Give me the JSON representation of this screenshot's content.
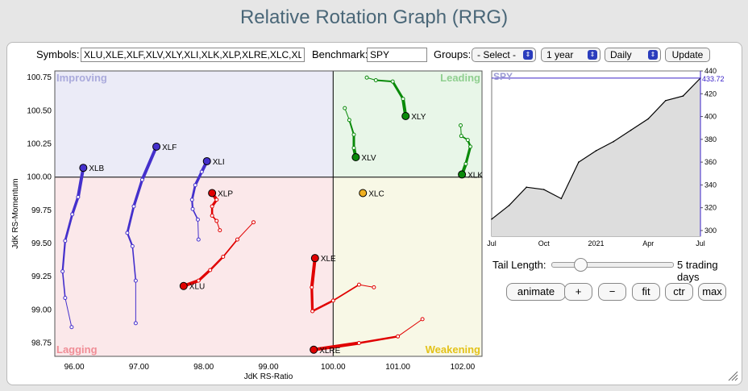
{
  "page_title": "Relative Rotation Graph (RRG)",
  "controls": {
    "symbols_label": "Symbols:",
    "symbols_value": "XLU,XLE,XLF,XLV,XLY,XLI,XLK,XLP,XLRE,XLC,XLB",
    "benchmark_label": "Benchmark:",
    "benchmark_value": "SPY",
    "groups_label": "Groups:",
    "groups_selected": "- Select -",
    "period_selected": "1 year",
    "interval_selected": "Daily",
    "update_label": "Update"
  },
  "tail": {
    "label": "Tail Length:",
    "value": 5,
    "value_text": "5 trading days"
  },
  "buttons": {
    "animate": "animate",
    "plus": "+",
    "minus": "−",
    "fit": "fit",
    "ctr": "ctr",
    "max": "max"
  },
  "chart_data": [
    {
      "type": "scatter",
      "title": "",
      "xlabel": "JdK RS-Ratio",
      "ylabel": "JdK RS-Momentum",
      "xlim": [
        95.7,
        102.3
      ],
      "ylim": [
        98.65,
        100.8
      ],
      "xticks": [
        96.0,
        97.0,
        98.0,
        99.0,
        100.0,
        101.0,
        102.0
      ],
      "yticks": [
        98.75,
        99.0,
        99.25,
        99.5,
        99.75,
        100.0,
        100.25,
        100.5,
        100.75
      ],
      "quadrants": {
        "improving": {
          "label": "Improving",
          "color": "#ebebf7",
          "text_color": "#aaaadc"
        },
        "leading": {
          "label": "Leading",
          "color": "#e8f6e8",
          "text_color": "#8fcf8f"
        },
        "weakening": {
          "label": "Weakening",
          "color": "#f8f8e6",
          "text_color": "#e3c21a"
        },
        "lagging": {
          "label": "Lagging",
          "color": "#fbe8ea",
          "text_color": "#f08d96"
        }
      },
      "series": [
        {
          "name": "XLB",
          "color": "#4430cc",
          "x": [
            95.96,
            95.86,
            95.82,
            95.86,
            95.97,
            96.06,
            96.14
          ],
          "y": [
            98.87,
            99.09,
            99.29,
            99.52,
            99.72,
            99.85,
            100.07
          ]
        },
        {
          "name": "XLF",
          "color": "#4430cc",
          "x": [
            96.95,
            96.95,
            96.9,
            96.82,
            96.92,
            97.05,
            97.27
          ],
          "y": [
            98.9,
            99.22,
            99.48,
            99.58,
            99.78,
            99.98,
            100.23
          ]
        },
        {
          "name": "XLI",
          "color": "#4430cc",
          "x": [
            97.92,
            97.91,
            97.83,
            97.82,
            97.87,
            97.97,
            98.05
          ],
          "y": [
            99.53,
            99.68,
            99.76,
            99.83,
            99.94,
            100.04,
            100.12
          ]
        },
        {
          "name": "XLP",
          "color": "#e00000",
          "x": [
            98.25,
            98.2,
            98.13,
            98.13,
            98.2,
            98.13
          ],
          "y": [
            99.6,
            99.67,
            99.71,
            99.78,
            99.83,
            99.88
          ]
        },
        {
          "name": "XLU",
          "color": "#e00000",
          "x": [
            98.77,
            98.52,
            98.3,
            98.1,
            97.92,
            97.69
          ],
          "y": [
            99.66,
            99.53,
            99.4,
            99.3,
            99.22,
            99.18
          ]
        },
        {
          "name": "XLE",
          "color": "#e00000",
          "x": [
            100.63,
            100.4,
            100.0,
            99.68,
            99.67,
            99.72
          ],
          "y": [
            99.17,
            99.19,
            99.07,
            98.99,
            99.17,
            99.39
          ]
        },
        {
          "name": "XLRE",
          "color": "#e00000",
          "x": [
            101.38,
            101.0,
            100.4,
            99.7
          ],
          "y": [
            98.93,
            98.8,
            98.75,
            98.7
          ]
        },
        {
          "name": "XLC",
          "color": "#f0b020",
          "x": [
            100.46
          ],
          "y": [
            99.88
          ]
        },
        {
          "name": "XLV",
          "color": "#0a8a0a",
          "x": [
            100.18,
            100.25,
            100.32,
            100.32,
            100.35
          ],
          "y": [
            100.52,
            100.43,
            100.32,
            100.22,
            100.15
          ]
        },
        {
          "name": "XLY",
          "color": "#0a8a0a",
          "x": [
            100.52,
            100.66,
            100.92,
            101.08,
            101.12
          ],
          "y": [
            100.75,
            100.73,
            100.72,
            100.59,
            100.46
          ]
        },
        {
          "name": "XLK",
          "color": "#0a8a0a",
          "x": [
            101.97,
            101.98,
            102.08,
            102.12,
            102.05,
            101.99
          ],
          "y": [
            100.39,
            100.31,
            100.28,
            100.23,
            100.1,
            100.02
          ]
        }
      ]
    },
    {
      "type": "area",
      "title": "SPY",
      "current_value": "433.72",
      "ylim": [
        295,
        440
      ],
      "yticks": [
        300,
        320,
        340,
        360,
        380,
        400,
        420,
        440
      ],
      "xticks": [
        "Jul",
        "Oct",
        "2021",
        "Apr",
        "Jul"
      ],
      "x": [
        "Jul",
        "Aug",
        "Sep",
        "Oct",
        "Nov",
        "Dec",
        "2021",
        "Feb",
        "Mar",
        "Apr",
        "May",
        "Jun",
        "Jul"
      ],
      "values": [
        310,
        322,
        338,
        336,
        328,
        360,
        370,
        378,
        388,
        398,
        414,
        418,
        433.72
      ],
      "color": "#000000",
      "fill": "#dddddd"
    }
  ]
}
